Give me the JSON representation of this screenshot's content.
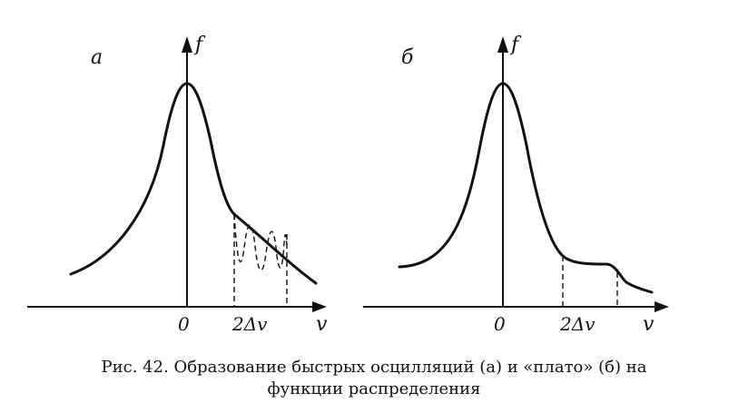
{
  "panel_a": {
    "label": "а",
    "y_label": "f",
    "x_label": "v",
    "origin_label": "0",
    "tick_label": "2Δv"
  },
  "panel_b": {
    "label": "б",
    "y_label": "f",
    "x_label": "v",
    "origin_label": "0",
    "tick_label": "2Δv"
  },
  "caption": {
    "line1": "Рис. 42. Образование быстрых осцилляций (а) и «плато» (б) на",
    "line2": "функции распределения"
  }
}
